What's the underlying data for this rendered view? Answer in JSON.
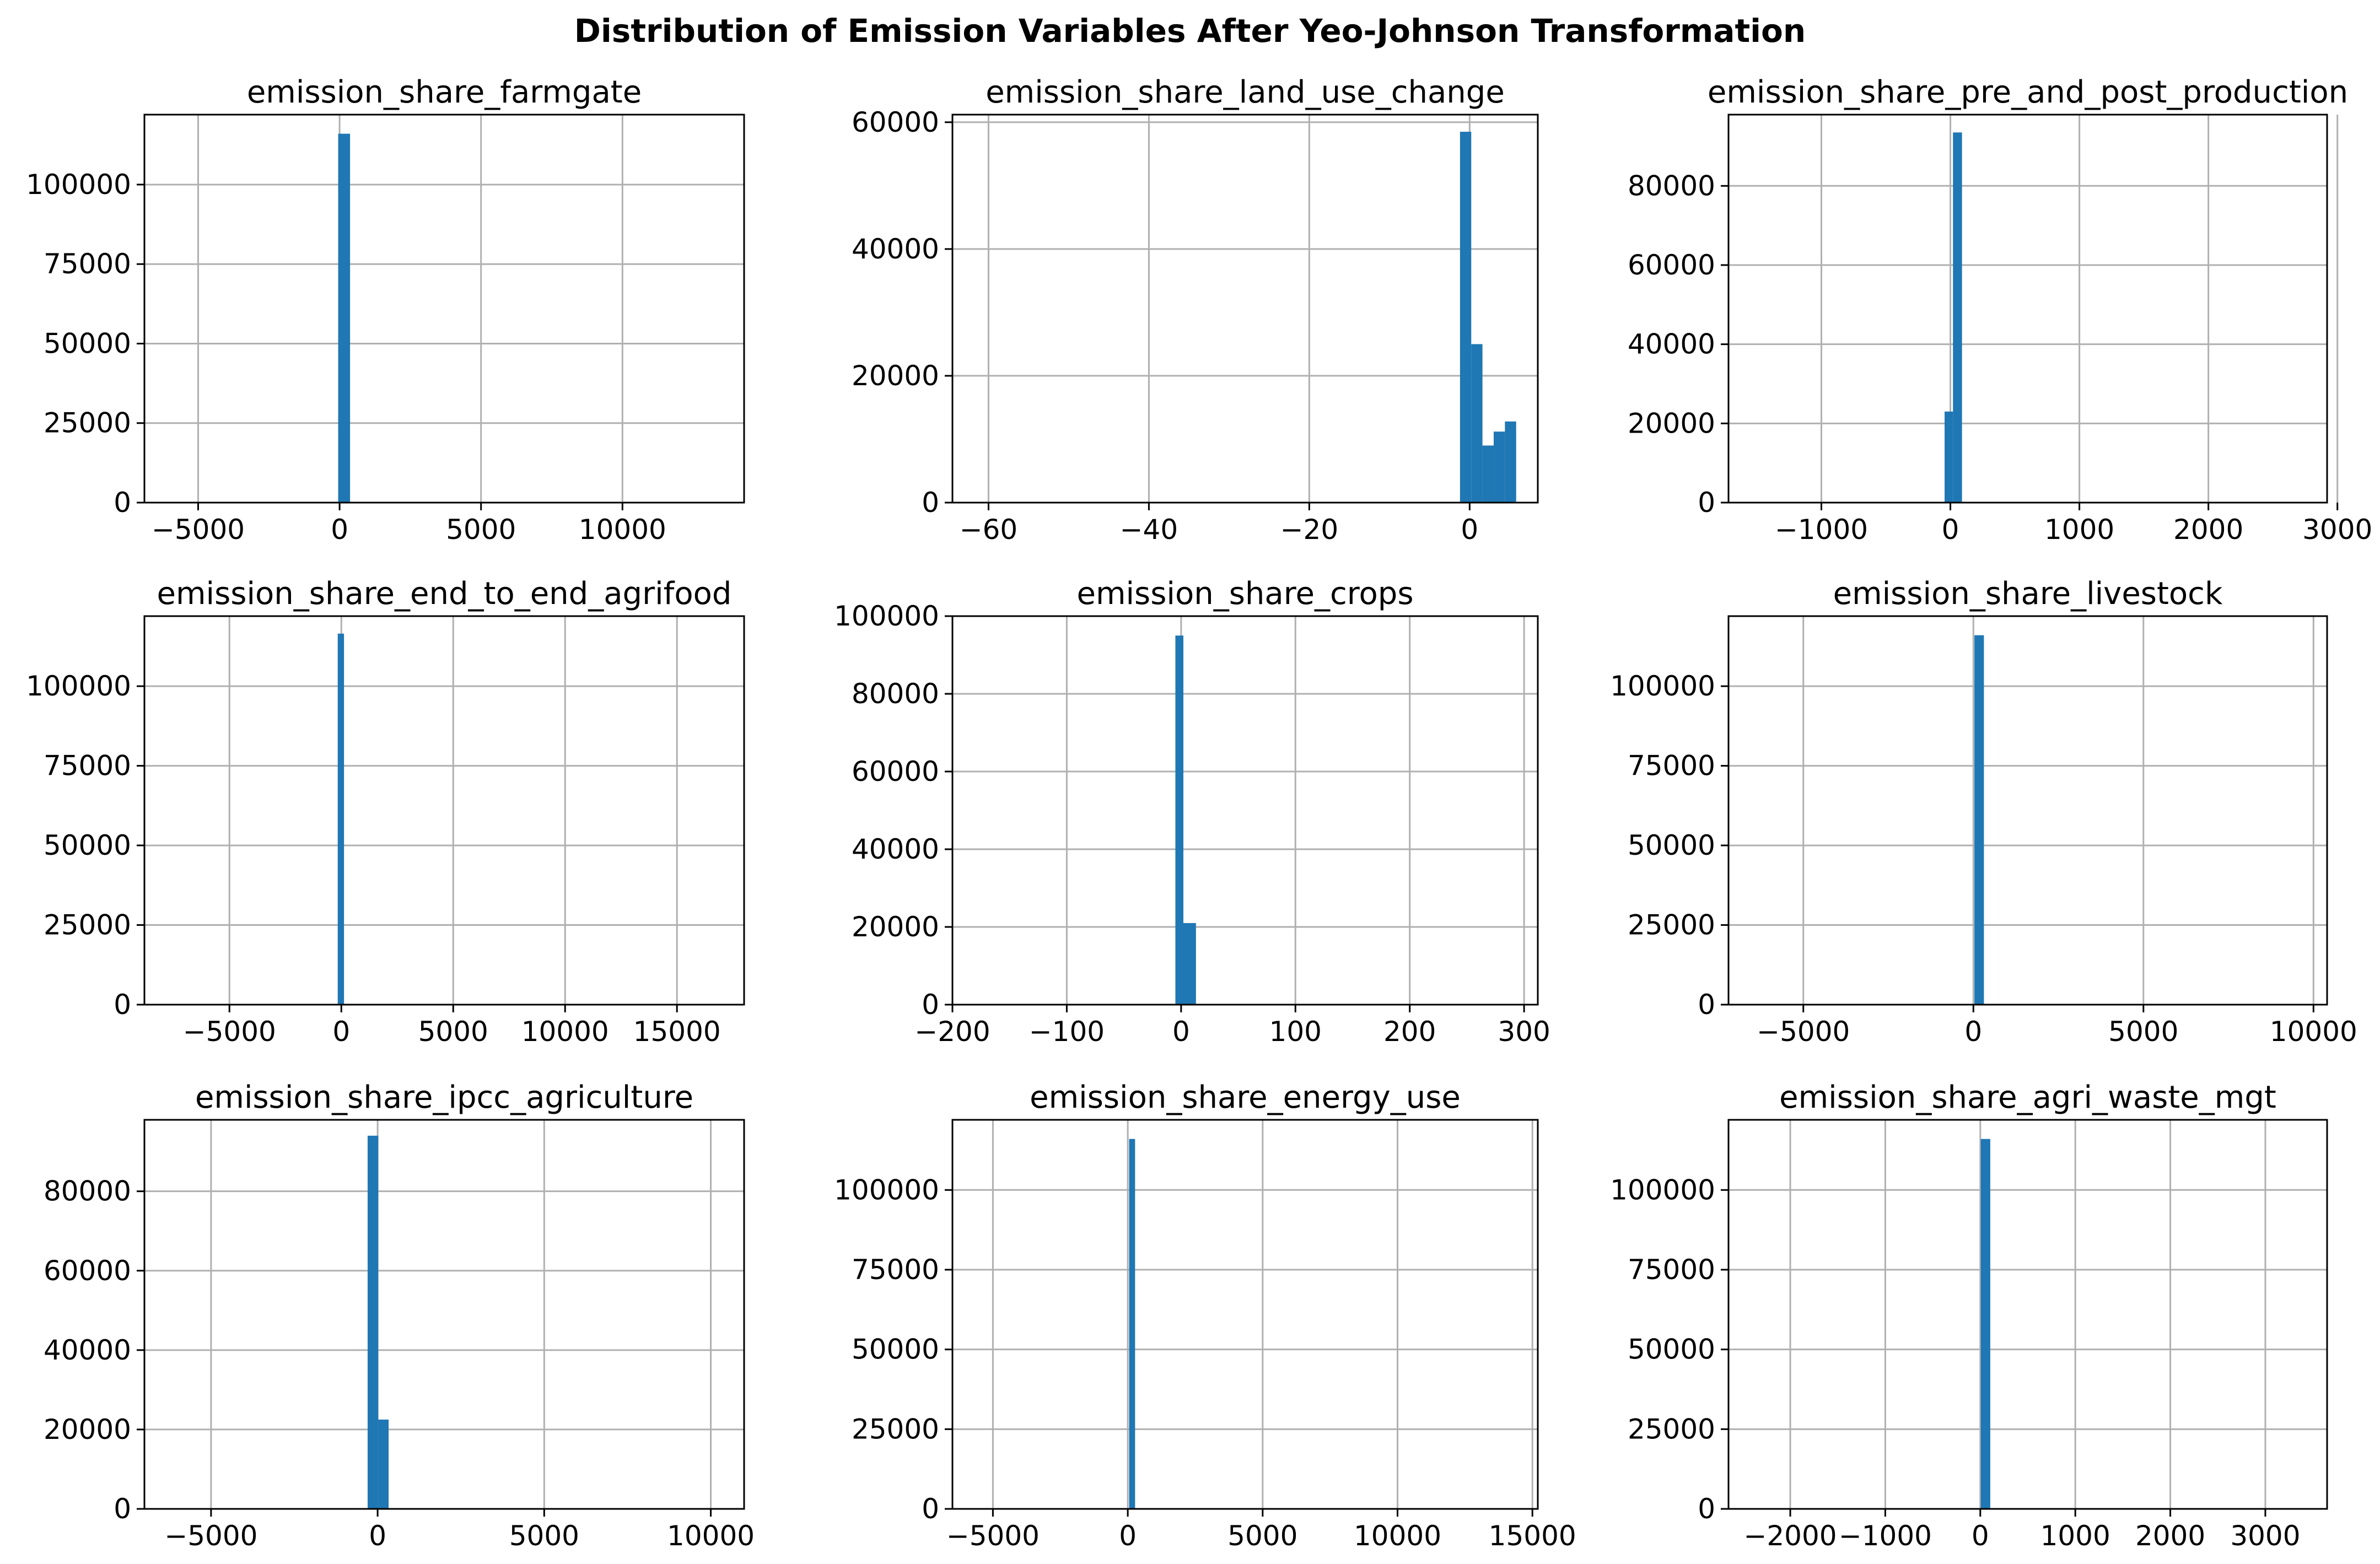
{
  "figure": {
    "title": "Distribution of Emission Variables After Yeo-Johnson Transformation",
    "bar_color": "#1f77b4",
    "grid_color": "#b0b0b0"
  },
  "chart_data": [
    {
      "type": "bar",
      "title": "emission_share_farmgate",
      "xlim": [
        -6900,
        14300
      ],
      "ylim": [
        0,
        122000
      ],
      "xticks": [
        -5000,
        0,
        5000,
        10000
      ],
      "xtick_labels": [
        "−5000",
        "0",
        "5000",
        "10000"
      ],
      "yticks": [
        0,
        25000,
        50000,
        75000,
        100000
      ],
      "ytick_labels": [
        "0",
        "25000",
        "50000",
        "75000",
        "100000"
      ],
      "grid": true,
      "bins": [
        {
          "x0": -50,
          "x1": 370,
          "count": 116000
        }
      ]
    },
    {
      "type": "bar",
      "title": "emission_share_land_use_change",
      "xlim": [
        -64.5,
        8.5
      ],
      "ylim": [
        0,
        61200
      ],
      "xticks": [
        -60,
        -40,
        -20,
        0
      ],
      "xtick_labels": [
        "−60",
        "−40",
        "−20",
        "0"
      ],
      "yticks": [
        0,
        20000,
        40000,
        60000
      ],
      "ytick_labels": [
        "0",
        "20000",
        "40000",
        "60000"
      ],
      "grid": true,
      "bins": [
        {
          "x0": -1.2,
          "x1": 0.2,
          "count": 58500
        },
        {
          "x0": 0.2,
          "x1": 1.6,
          "count": 25000
        },
        {
          "x0": 1.6,
          "x1": 3.0,
          "count": 9000
        },
        {
          "x0": 3.0,
          "x1": 4.4,
          "count": 11200
        },
        {
          "x0": 4.4,
          "x1": 5.8,
          "count": 12800
        }
      ]
    },
    {
      "type": "bar",
      "title": "emission_share_pre_and_post_production",
      "xlim": [
        -1720,
        2920
      ],
      "ylim": [
        0,
        98000
      ],
      "xticks": [
        -1000,
        0,
        1000,
        2000,
        3000
      ],
      "xtick_labels": [
        "−1000",
        "0",
        "1000",
        "2000",
        "3000"
      ],
      "yticks": [
        0,
        20000,
        40000,
        60000,
        80000
      ],
      "ytick_labels": [
        "0",
        "20000",
        "40000",
        "60000",
        "80000"
      ],
      "grid": true,
      "bins": [
        {
          "x0": -45,
          "x1": 20,
          "count": 23000
        },
        {
          "x0": 20,
          "x1": 90,
          "count": 93500
        }
      ]
    },
    {
      "type": "bar",
      "title": "emission_share_end_to_end_agrifood",
      "xlim": [
        -8800,
        18000
      ],
      "ylim": [
        0,
        122000
      ],
      "xticks": [
        -5000,
        0,
        5000,
        10000,
        15000
      ],
      "xtick_labels": [
        "−5000",
        "0",
        "5000",
        "10000",
        "15000"
      ],
      "yticks": [
        0,
        25000,
        50000,
        75000,
        100000
      ],
      "ytick_labels": [
        "0",
        "25000",
        "50000",
        "75000",
        "100000"
      ],
      "grid": true,
      "bins": [
        {
          "x0": -160,
          "x1": 120,
          "count": 116500
        }
      ]
    },
    {
      "type": "bar",
      "title": "emission_share_crops",
      "xlim": [
        -200,
        312
      ],
      "ylim": [
        0,
        100000
      ],
      "xticks": [
        -200,
        -100,
        0,
        100,
        200,
        300
      ],
      "xtick_labels": [
        "−200",
        "−100",
        "0",
        "100",
        "200",
        "300"
      ],
      "yticks": [
        0,
        20000,
        40000,
        60000,
        80000,
        100000
      ],
      "ytick_labels": [
        "0",
        "20000",
        "40000",
        "60000",
        "80000",
        "100000"
      ],
      "grid": true,
      "bins": [
        {
          "x0": -5,
          "x1": 2,
          "count": 95000
        },
        {
          "x0": 2,
          "x1": 13,
          "count": 21000
        }
      ]
    },
    {
      "type": "bar",
      "title": "emission_share_livestock",
      "xlim": [
        -7200,
        10400
      ],
      "ylim": [
        0,
        122000
      ],
      "xticks": [
        -5000,
        0,
        5000,
        10000
      ],
      "xtick_labels": [
        "−5000",
        "0",
        "5000",
        "10000"
      ],
      "yticks": [
        0,
        25000,
        50000,
        75000,
        100000
      ],
      "ytick_labels": [
        "0",
        "25000",
        "50000",
        "75000",
        "100000"
      ],
      "grid": true,
      "bins": [
        {
          "x0": 30,
          "x1": 310,
          "count": 116000
        }
      ]
    },
    {
      "type": "bar",
      "title": "emission_share_ipcc_agriculture",
      "xlim": [
        -7000,
        11000
      ],
      "ylim": [
        0,
        98000
      ],
      "xticks": [
        -5000,
        0,
        5000,
        10000
      ],
      "xtick_labels": [
        "−5000",
        "0",
        "5000",
        "10000"
      ],
      "yticks": [
        0,
        20000,
        40000,
        60000,
        80000
      ],
      "ytick_labels": [
        "0",
        "20000",
        "40000",
        "60000",
        "80000"
      ],
      "grid": true,
      "bins": [
        {
          "x0": -300,
          "x1": 20,
          "count": 94000
        },
        {
          "x0": 20,
          "x1": 330,
          "count": 22500
        }
      ]
    },
    {
      "type": "bar",
      "title": "emission_share_energy_use",
      "xlim": [
        -6500,
        15200
      ],
      "ylim": [
        0,
        122000
      ],
      "xticks": [
        -5000,
        0,
        5000,
        10000,
        15000
      ],
      "xtick_labels": [
        "−5000",
        "0",
        "5000",
        "10000",
        "15000"
      ],
      "yticks": [
        0,
        25000,
        50000,
        75000,
        100000
      ],
      "ytick_labels": [
        "0",
        "25000",
        "50000",
        "75000",
        "100000"
      ],
      "grid": true,
      "bins": [
        {
          "x0": 50,
          "x1": 270,
          "count": 116000
        }
      ]
    },
    {
      "type": "bar",
      "title": "emission_share_agri_waste_mgt",
      "xlim": [
        -2650,
        3650
      ],
      "ylim": [
        0,
        122000
      ],
      "xticks": [
        -2000,
        -1000,
        0,
        1000,
        2000,
        3000
      ],
      "xtick_labels": [
        "−2000",
        "−1000",
        "0",
        "1000",
        "2000",
        "3000"
      ],
      "yticks": [
        0,
        25000,
        50000,
        75000,
        100000
      ],
      "ytick_labels": [
        "0",
        "25000",
        "50000",
        "75000",
        "100000"
      ],
      "grid": true,
      "bins": [
        {
          "x0": 5,
          "x1": 105,
          "count": 116000
        }
      ]
    }
  ]
}
